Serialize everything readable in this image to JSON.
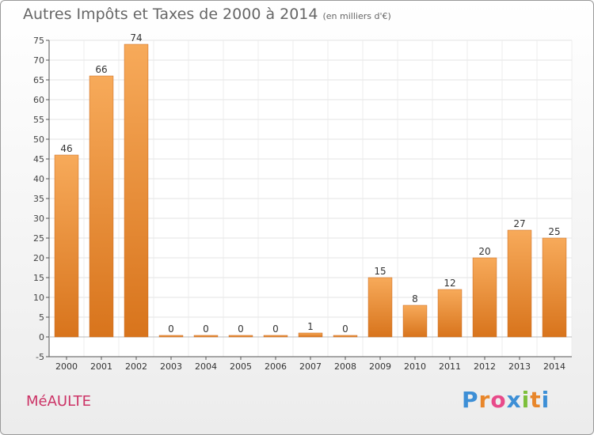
{
  "header": {
    "title": "Autres Impôts et Taxes de 2000 à 2014",
    "unit": "(en milliers d'€)"
  },
  "footer": {
    "commune": "MéAULTE",
    "brand_letters": [
      "P",
      "r",
      "o",
      "x",
      "i",
      "t",
      "i"
    ],
    "brand_colors": [
      "#3d8fd6",
      "#e8862a",
      "#e84a8a",
      "#3d8fd6",
      "#7cbf3a",
      "#e8862a",
      "#3d8fd6"
    ]
  },
  "chart_data": {
    "type": "bar",
    "title": "Autres Impôts et Taxes de 2000 à 2014",
    "subtitle": "(en milliers d'€)",
    "categories": [
      "2000",
      "2001",
      "2002",
      "2003",
      "2004",
      "2005",
      "2006",
      "2007",
      "2008",
      "2009",
      "2010",
      "2011",
      "2012",
      "2013",
      "2014"
    ],
    "values": [
      46,
      66,
      74,
      0,
      0,
      0,
      0,
      1,
      0,
      15,
      8,
      12,
      20,
      27,
      25
    ],
    "data_labels": [
      "46",
      "66",
      "74",
      "0",
      "0",
      "0",
      "0",
      "1",
      "0",
      "15",
      "8",
      "12",
      "20",
      "27",
      "25"
    ],
    "ylim": [
      -5,
      75
    ],
    "yticks": [
      -5,
      0,
      5,
      10,
      15,
      20,
      25,
      30,
      35,
      40,
      45,
      50,
      55,
      60,
      65,
      70,
      75
    ],
    "ytick_labels": [
      "-5",
      "0",
      "5",
      "10",
      "15",
      "20",
      "25",
      "30",
      "35",
      "40",
      "45",
      "50",
      "55",
      "60",
      "65",
      "70",
      "75"
    ],
    "grid": true,
    "bar_color": "#e8892e",
    "bar_color_light": "#f7aa5a"
  }
}
